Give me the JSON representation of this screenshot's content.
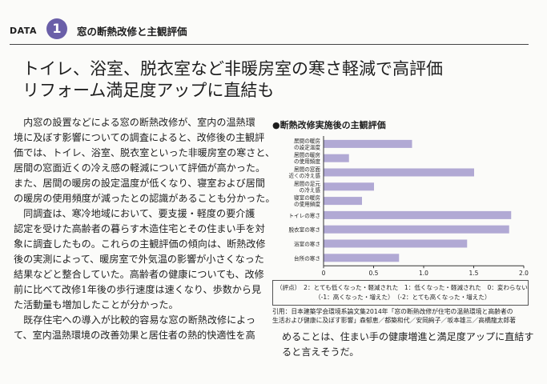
{
  "header": {
    "data_label": "DATA",
    "data_number": "1",
    "section_title": "窓の断熱改修と主観評価"
  },
  "headline": {
    "line1": "トイレ、浴室、脱衣室など非暖房室の寒さ軽減で高評価",
    "line2": "リフォーム満足度アップに直結も"
  },
  "body_left": [
    "　内窓の設置などによる窓の断熱改修が、室内の温熱環",
    "境に及ぼす影響についての調査によると、改修後の主観評",
    "価では、トイレ、浴室、脱衣室といった非暖房室の寒さと、",
    "居間の窓面近くの冷え感の軽減について評価が高かった。",
    "また、居間の暖房の設定温度が低くなり、寝室および居間",
    "の暖房の使用頻度が減ったとの認識があることも分かった。",
    "　同調査は、寒冷地域において、要支援・軽度の要介護",
    "認定を受けた高齢者の暮らす木造住宅とその住まい手を対",
    "象に調査したもの。これらの主観評価の傾向は、断熱改修",
    "後の実測によって、暖房室で外気温の影響が小さくなった",
    "結果などと整合していた。高齢者の健康についても、改修",
    "前に比べて改修1年後の歩行速度は速くなり、歩数から見",
    "た活動量も増加したことが分かった。",
    "　既存住宅への導入が比較的容易な窓の断熱改修によっ",
    "て、室内温熱環境の改善効果と居住者の熱的快適性を高"
  ],
  "body_right": [
    "めることは、住まい手の健康増進と満足度アップに直結す",
    "ると言えそうだ。"
  ],
  "chart_data": {
    "type": "bar",
    "orientation": "horizontal",
    "title": "●断熱改修実施後の主観評価",
    "categories": [
      [
        "居間の暖房",
        "の設定温度"
      ],
      [
        "居間の暖房",
        "の使用頻度"
      ],
      [
        "居間の窓面",
        "近くの冷え感"
      ],
      [
        "居間の足元",
        "の冷え感"
      ],
      [
        "寝室の暖房",
        "の使用頻度"
      ],
      [
        "トイレの寒さ"
      ],
      [
        "脱衣室の寒さ"
      ],
      [
        "浴室の寒さ"
      ],
      [
        "台所の寒さ"
      ]
    ],
    "values": [
      0.88,
      0.25,
      1.5,
      0.5,
      0.38,
      1.87,
      1.85,
      1.43,
      0.75
    ],
    "xlim": [
      0,
      2.0
    ],
    "xticks": [
      "0",
      "0.5",
      "1.0",
      "1.5",
      "2.0"
    ],
    "grid": false,
    "bar_color": "#b1a9d4"
  },
  "legend": {
    "row1": "（評点）　2：とても低くなった・軽減された　1：低くなった・軽減された　0：変わらない",
    "row2": "（-1：高くなった・増えた）　（-2：とても高くなった・増えた）"
  },
  "citation": {
    "line1": "引用：日本建築学会環境系論文集2014年「窓の断熱改修が住宅の温熱環境と高齢者の",
    "line2": "生活および健康に及ぼす影響」森郁恵／都築和代／安岡絢子／坂本雄三／高橋龍太郎著"
  }
}
